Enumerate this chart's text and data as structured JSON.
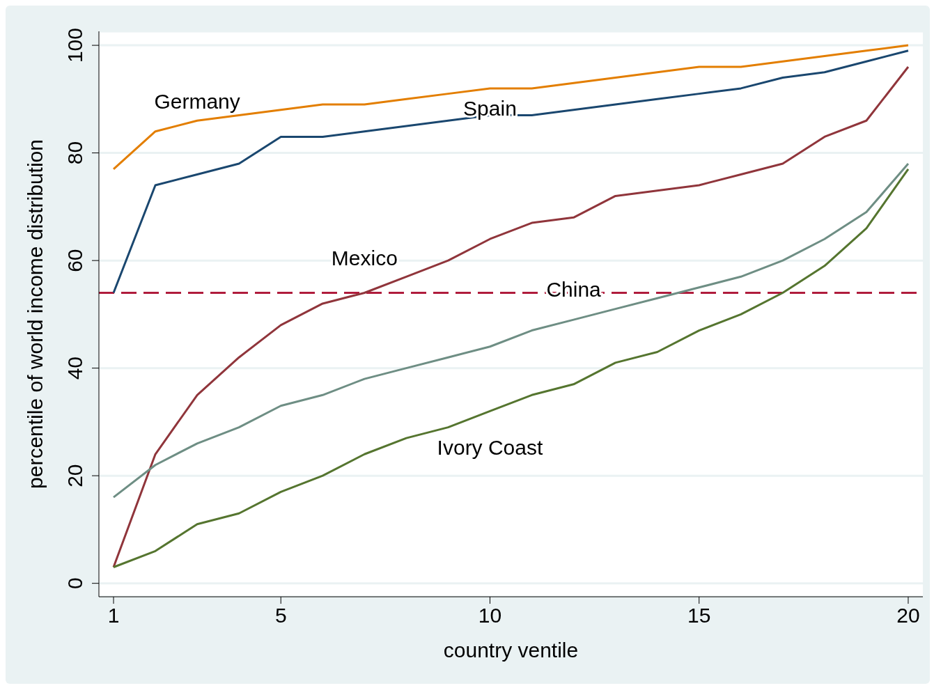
{
  "chart_data": {
    "type": "line",
    "xlabel": "country ventile",
    "ylabel": "percentile of world income distribution",
    "x": [
      1,
      2,
      3,
      4,
      5,
      6,
      7,
      8,
      9,
      10,
      11,
      12,
      13,
      14,
      15,
      16,
      17,
      18,
      19,
      20
    ],
    "series": [
      {
        "name": "Germany",
        "color": "#e37e00",
        "values": [
          77,
          84,
          86,
          87,
          88,
          89,
          89,
          90,
          91,
          92,
          92,
          93,
          94,
          95,
          96,
          96,
          97,
          98,
          99,
          100
        ]
      },
      {
        "name": "Spain",
        "color": "#1a476f",
        "values": [
          54,
          74,
          76,
          78,
          83,
          83,
          84,
          85,
          86,
          87,
          87,
          88,
          89,
          90,
          91,
          92,
          94,
          95,
          97,
          99
        ]
      },
      {
        "name": "Mexico",
        "color": "#90353b",
        "values": [
          3,
          24,
          35,
          42,
          48,
          52,
          54,
          57,
          60,
          64,
          67,
          68,
          72,
          73,
          74,
          76,
          78,
          83,
          86,
          96
        ]
      },
      {
        "name": "China",
        "color": "#6e8e84",
        "values": [
          16,
          22,
          26,
          29,
          33,
          35,
          38,
          40,
          42,
          44,
          47,
          49,
          51,
          53,
          55,
          57,
          60,
          64,
          69,
          78
        ]
      },
      {
        "name": "Ivory Coast",
        "color": "#55752f",
        "values": [
          3,
          6,
          11,
          13,
          17,
          20,
          24,
          27,
          29,
          32,
          35,
          37,
          41,
          43,
          47,
          50,
          54,
          59,
          66,
          77
        ]
      }
    ],
    "ref_lines": [
      {
        "axis": "y",
        "value": 54,
        "color": "#b01c3c",
        "line_style": "dashed"
      }
    ],
    "xlim": [
      0.65,
      20.35
    ],
    "xticks": [
      1,
      5,
      10,
      15,
      20
    ],
    "ylim": [
      -2.5,
      102.6
    ],
    "yticks": [
      0,
      20,
      40,
      60,
      80,
      100
    ],
    "grid": "y",
    "legend": false,
    "marker": "none",
    "line_style": "solid"
  }
}
